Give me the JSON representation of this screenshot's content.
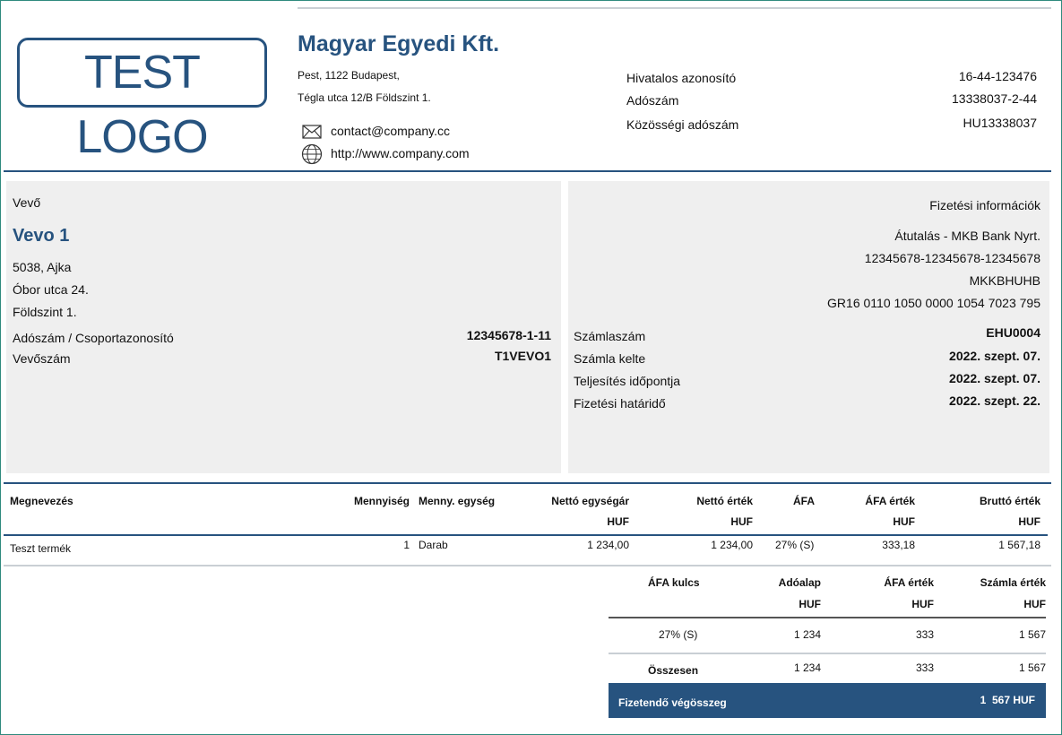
{
  "logo_text": "TEST LOGO",
  "company": {
    "name": "Magyar Egyedi Kft.",
    "address_line1": "Pest, 1122 Budapest,",
    "address_line2": "Tégla utca 12/B Földszint 1.",
    "email": "contact@company.cc",
    "website": "http://www.company.com",
    "ids": [
      {
        "label": "Hivatalos azonosító",
        "value": "16-44-123476"
      },
      {
        "label": "Adószám",
        "value": "13338037-2-44"
      },
      {
        "label": "Közösségi adószám",
        "value": "HU13338037"
      }
    ]
  },
  "buyer": {
    "section_label": "Vevő",
    "name": "Vevo 1",
    "address": [
      "5038, Ajka",
      "Óbor utca 24.",
      "Földszint 1."
    ],
    "tax_label": "Adószám / Csoportazonosító",
    "tax_value": "12345678-1-11",
    "customer_no_label": "Vevőszám",
    "customer_no_value": "T1VEVO1"
  },
  "payment": {
    "section_label": "Fizetési információk",
    "lines": [
      "Átutalás - MKB Bank Nyrt.",
      "12345678-12345678-12345678",
      "MKKBHUHB",
      "GR16 0110 1050 0000 1054 7023 795"
    ],
    "details": [
      {
        "label": "Számlaszám",
        "value": "EHU0004"
      },
      {
        "label": "Számla kelte",
        "value": "2022. szept. 07."
      },
      {
        "label": "Teljesítés időpontja",
        "value": "2022. szept. 07."
      },
      {
        "label": "Fizetési határidő",
        "value": "2022. szept. 22."
      }
    ]
  },
  "items": {
    "headers": {
      "name": "Megnevezés",
      "qty": "Mennyiség",
      "unit": "Menny. egység",
      "unit_price": "Nettó egységár",
      "net": "Nettó érték",
      "vat": "ÁFA",
      "vat_value": "ÁFA érték",
      "gross": "Bruttó érték"
    },
    "currency": "HUF",
    "rows": [
      {
        "name": "Teszt termék",
        "qty": "1",
        "unit": "Darab",
        "unit_price": "1 234,00",
        "net": "1 234,00",
        "vat": "27% (S)",
        "vat_value": "333,18",
        "gross": "1 567,18"
      }
    ]
  },
  "vat_summary": {
    "headers": {
      "rate": "ÁFA kulcs",
      "base": "Adóalap",
      "vat_value": "ÁFA érték",
      "invoice_value": "Számla érték"
    },
    "currency": "HUF",
    "rows": [
      {
        "rate": "27% (S)",
        "base": "1 234",
        "vat_value": "333",
        "invoice_value": "1 567"
      }
    ],
    "total": {
      "label": "Összesen",
      "base": "1 234",
      "vat_value": "333",
      "invoice_value": "1 567"
    }
  },
  "grand_total": {
    "label": "Fizetendő végösszeg",
    "value": "1  567 HUF"
  },
  "colors": {
    "accent": "#27537f",
    "panel": "#efefef",
    "frame": "#2f8a7e"
  }
}
